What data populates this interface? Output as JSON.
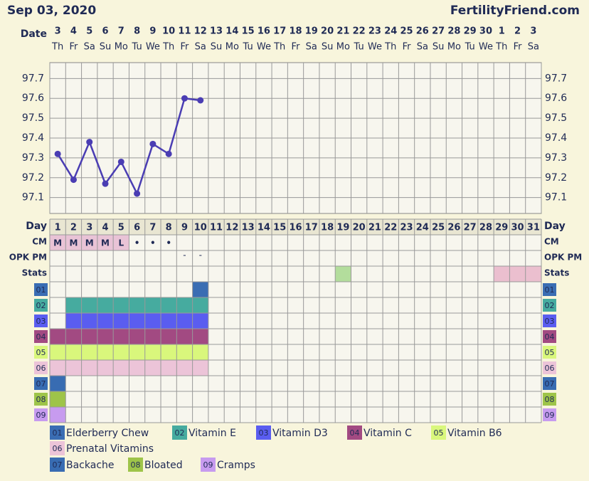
{
  "chart_data": {
    "type": "line",
    "title": "Sep 03, 2020",
    "brand": "FertilityFriend.com",
    "date_label": "Date",
    "categories": [
      "3",
      "4",
      "5",
      "6",
      "7",
      "8",
      "9",
      "10",
      "11",
      "12",
      "13",
      "14",
      "15",
      "16",
      "17",
      "18",
      "19",
      "20",
      "21",
      "22",
      "23",
      "24",
      "25",
      "26",
      "27",
      "28",
      "29",
      "30",
      "1",
      "2",
      "3"
    ],
    "weekdays": [
      "Th",
      "Fr",
      "Sa",
      "Su",
      "Mo",
      "Tu",
      "We",
      "Th",
      "Fr",
      "Sa",
      "Su",
      "Mo",
      "Tu",
      "We",
      "Th",
      "Fr",
      "Sa",
      "Su",
      "Mo",
      "Tu",
      "We",
      "Th",
      "Fr",
      "Sa",
      "Su",
      "Mo",
      "Tu",
      "We",
      "Th",
      "Fr",
      "Sa"
    ],
    "color": "#4a3db3",
    "values": [
      97.32,
      97.19,
      97.38,
      97.17,
      97.28,
      97.12,
      97.37,
      97.32,
      97.6,
      97.59,
      null,
      null,
      null,
      null,
      null,
      null,
      null,
      null,
      null,
      null,
      null,
      null,
      null,
      null,
      null,
      null,
      null,
      null,
      null,
      null,
      null
    ],
    "ylim": [
      97.02,
      97.78
    ],
    "yticks": [
      97.1,
      97.2,
      97.3,
      97.4,
      97.5,
      97.6,
      97.7
    ],
    "grid": true,
    "day_label": "Day",
    "days": [
      1,
      2,
      3,
      4,
      5,
      6,
      7,
      8,
      9,
      10,
      11,
      12,
      13,
      14,
      15,
      16,
      17,
      18,
      19,
      20,
      21,
      22,
      23,
      24,
      25,
      26,
      27,
      28,
      29,
      30,
      31
    ],
    "cm": {
      "label": "CM",
      "color": "#e9c3d6",
      "values": [
        "M",
        "M",
        "M",
        "M",
        "L",
        "•",
        "•",
        "•",
        null,
        null,
        null,
        null,
        null,
        null,
        null,
        null,
        null,
        null,
        null,
        null,
        null,
        null,
        null,
        null,
        null,
        null,
        null,
        null,
        null,
        null,
        null
      ]
    },
    "opk": {
      "label": "OPK PM",
      "values": [
        null,
        null,
        null,
        null,
        null,
        null,
        null,
        null,
        "-",
        "-",
        null,
        null,
        null,
        null,
        null,
        null,
        null,
        null,
        null,
        null,
        null,
        null,
        null,
        null,
        null,
        null,
        null,
        null,
        null,
        null,
        null
      ]
    },
    "stats": {
      "label": "Stats",
      "cells": [
        {
          "span": [
            19,
            19
          ],
          "color": "#b3dd9c"
        },
        {
          "span": [
            29,
            31
          ],
          "color": "#ebbfcf"
        }
      ]
    },
    "tracks": [
      {
        "code": "01",
        "name": "Elderberry Chew",
        "color": "#3a6db3",
        "text_color": "#ffffff",
        "span": [
          10,
          10
        ]
      },
      {
        "code": "02",
        "name": "Vitamin E",
        "color": "#46ab9f",
        "text_color": "#1f2f50",
        "span": [
          2,
          10
        ]
      },
      {
        "code": "03",
        "name": "Vitamin D3",
        "color": "#5a5df0",
        "text_color": "#ffffff",
        "span": [
          2,
          10
        ]
      },
      {
        "code": "04",
        "name": "Vitamin C",
        "color": "#a24a82",
        "text_color": "#ffffff",
        "span": [
          1,
          10
        ]
      },
      {
        "code": "05",
        "name": "Vitamin B6",
        "color": "#d9f77c",
        "text_color": "#1f2f50",
        "span": [
          1,
          10
        ]
      },
      {
        "code": "06",
        "name": "Prenatal Vitamins",
        "color": "#ecc4d8",
        "text_color": "#1f2f50",
        "span": [
          1,
          10
        ]
      },
      {
        "code": "07",
        "name": "Backache",
        "color": "#386cb2",
        "text_color": "#ffffff",
        "span": [
          1,
          1
        ]
      },
      {
        "code": "08",
        "name": "Bloated",
        "color": "#9ec449",
        "text_color": "#1f2f50",
        "span": [
          1,
          1
        ]
      },
      {
        "code": "09",
        "name": "Cramps",
        "color": "#c79bef",
        "text_color": "#1f2f50",
        "span": [
          1,
          1
        ]
      }
    ]
  }
}
